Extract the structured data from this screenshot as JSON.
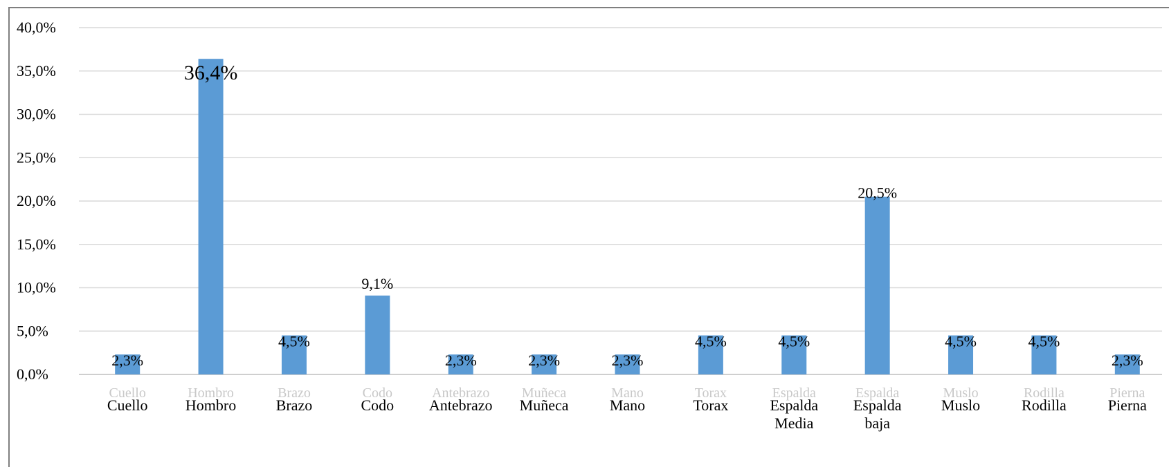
{
  "chart_data": {
    "type": "bar",
    "categories": [
      "Cuello",
      "Hombro",
      "Brazo",
      "Codo",
      "Antebrazo",
      "Muñeca",
      "Mano",
      "Torax",
      "Espalda Media",
      "Espalda baja",
      "Muslo",
      "Rodilla",
      "Pierna"
    ],
    "values": [
      2.3,
      36.4,
      4.5,
      9.1,
      2.3,
      2.3,
      2.3,
      4.5,
      4.5,
      20.5,
      4.5,
      4.5,
      2.3
    ],
    "data_labels": [
      "2,3%",
      "36,4%",
      "4,5%",
      "9,1%",
      "2,3%",
      "2,3%",
      "2,3%",
      "4,5%",
      "4,5%",
      "20,5%",
      "4,5%",
      "4,5%",
      "2,3%"
    ],
    "y_ticks": [
      0,
      5,
      10,
      15,
      20,
      25,
      30,
      35,
      40
    ],
    "y_tick_labels": [
      "0,0%",
      "5,0%",
      "10,0%",
      "15,0%",
      "20,0%",
      "25,0%",
      "30,0%",
      "35,0%",
      "40,0%"
    ],
    "ylim": [
      0,
      40
    ],
    "grid": true,
    "legend": "none",
    "colors": {
      "bar": "#5b9bd5",
      "grid": "#d9d9d9"
    }
  }
}
